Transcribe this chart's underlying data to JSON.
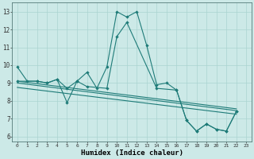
{
  "title": "",
  "xlabel": "Humidex (Indice chaleur)",
  "xlim": [
    -0.5,
    23.5
  ],
  "ylim": [
    5.7,
    13.5
  ],
  "xticks": [
    0,
    1,
    2,
    3,
    4,
    5,
    6,
    7,
    8,
    9,
    10,
    11,
    12,
    13,
    14,
    15,
    16,
    17,
    18,
    19,
    20,
    21,
    22,
    23
  ],
  "yticks": [
    6,
    7,
    8,
    9,
    10,
    11,
    12,
    13
  ],
  "bg_color": "#cce9e7",
  "grid_color": "#aad4d1",
  "line_color": "#1e7b78",
  "s0_x": [
    0,
    1,
    2,
    3,
    4,
    5,
    6,
    7,
    8,
    9,
    10,
    11,
    12,
    13,
    14,
    15,
    16,
    17,
    18,
    19,
    20,
    21,
    22
  ],
  "s0_y": [
    9.9,
    9.1,
    9.1,
    9.0,
    9.2,
    7.9,
    9.1,
    9.6,
    8.7,
    9.9,
    13.0,
    12.7,
    13.0,
    11.1,
    8.9,
    9.0,
    8.6,
    6.9,
    6.3,
    6.7,
    6.4,
    6.3,
    7.4
  ],
  "s1_x": [
    0,
    2,
    3,
    4,
    5,
    6,
    7,
    9,
    10,
    11,
    14,
    16,
    17,
    18,
    19,
    20,
    21,
    22
  ],
  "s1_y": [
    9.1,
    9.1,
    9.0,
    9.2,
    8.7,
    9.1,
    8.8,
    8.7,
    11.6,
    12.4,
    8.7,
    8.6,
    6.9,
    6.3,
    6.7,
    6.4,
    6.3,
    7.4
  ],
  "trend_lines": [
    {
      "x": [
        0,
        22
      ],
      "y": [
        9.1,
        7.55
      ]
    },
    {
      "x": [
        0,
        22
      ],
      "y": [
        9.0,
        7.45
      ]
    },
    {
      "x": [
        0,
        22
      ],
      "y": [
        8.75,
        7.25
      ]
    }
  ]
}
